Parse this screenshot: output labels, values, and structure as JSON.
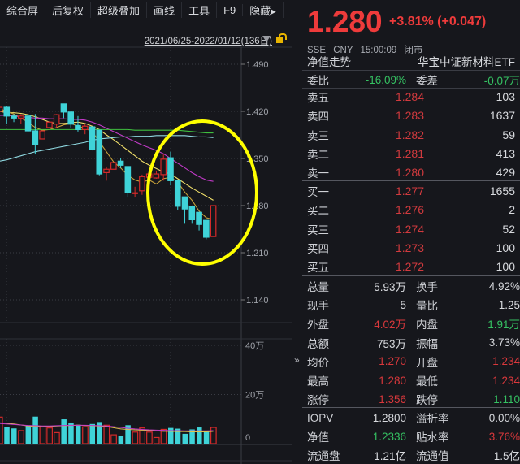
{
  "toolbar": {
    "items": [
      "综合屏",
      "后复权",
      "超级叠加",
      "画线",
      "工具",
      "F9",
      "隐藏▸"
    ]
  },
  "chart": {
    "date_range": "2021/06/25-2022/01/12(136日)",
    "price_ticks": [
      "1.490",
      "1.420",
      "1.350",
      "1.280",
      "1.210",
      "1.140"
    ],
    "volume_ticks": [
      "40万",
      "20万",
      "0"
    ],
    "colors": {
      "up": "#d42a2a",
      "down": "#3fd3d8",
      "annotation": "#ffff00"
    },
    "candles": [
      [
        1.42,
        1.428,
        1.418,
        1.426
      ],
      [
        1.426,
        1.428,
        1.401,
        1.413
      ],
      [
        1.413,
        1.416,
        1.404,
        1.41
      ],
      [
        1.41,
        1.416,
        1.401,
        1.413
      ],
      [
        1.413,
        1.416,
        1.39,
        1.391
      ],
      [
        1.391,
        1.416,
        1.356,
        1.371
      ],
      [
        1.379,
        1.391,
        1.379,
        1.391
      ],
      [
        1.396,
        1.404,
        1.396,
        1.404
      ],
      [
        1.401,
        1.416,
        1.396,
        1.415
      ],
      [
        1.431,
        1.431,
        1.41,
        1.419
      ],
      [
        1.419,
        1.419,
        1.396,
        1.401
      ],
      [
        1.399,
        1.413,
        1.39,
        1.393
      ],
      [
        1.393,
        1.402,
        1.386,
        1.398
      ],
      [
        1.397,
        1.397,
        1.362,
        1.364
      ],
      [
        1.392,
        1.392,
        1.325,
        1.327
      ],
      [
        1.329,
        1.338,
        1.317,
        1.334
      ],
      [
        1.334,
        1.344,
        1.334,
        1.344
      ],
      [
        1.346,
        1.351,
        1.336,
        1.34
      ],
      [
        1.338,
        1.338,
        1.292,
        1.299
      ],
      [
        1.298,
        1.308,
        1.292,
        1.299
      ],
      [
        1.302,
        1.326,
        1.296,
        1.323
      ],
      [
        1.322,
        1.327,
        1.322,
        1.327
      ],
      [
        1.321,
        1.332,
        1.32,
        1.327
      ],
      [
        1.326,
        1.356,
        1.317,
        1.349
      ],
      [
        1.351,
        1.36,
        1.31,
        1.317
      ],
      [
        1.317,
        1.317,
        1.274,
        1.279
      ],
      [
        1.293,
        1.293,
        1.253,
        1.275
      ],
      [
        1.279,
        1.279,
        1.253,
        1.259
      ],
      [
        1.27,
        1.27,
        1.243,
        1.252
      ],
      [
        1.258,
        1.258,
        1.23,
        1.233
      ],
      [
        1.234,
        1.28,
        1.234,
        1.28
      ]
    ],
    "ma_lines": [
      {
        "color": "#f2e06a",
        "values": [
          1.42,
          1.418,
          1.418,
          1.417,
          1.415,
          1.412,
          1.408,
          1.404,
          1.402,
          1.402,
          1.403,
          1.404,
          1.402,
          1.398,
          1.393,
          1.385,
          1.378,
          1.37,
          1.362,
          1.354,
          1.346,
          1.34,
          1.335,
          1.33,
          1.327,
          1.32,
          1.313,
          1.306,
          1.3,
          1.294,
          1.288
        ]
      },
      {
        "color": "#c8a23a",
        "values": [
          1.424,
          1.42,
          1.416,
          1.41,
          1.404,
          1.396,
          1.392,
          1.393,
          1.396,
          1.4,
          1.402,
          1.398,
          1.395,
          1.39,
          1.375,
          1.36,
          1.345,
          1.336,
          1.325,
          1.318,
          1.315,
          1.318,
          1.312,
          1.32,
          1.322,
          1.315,
          1.3,
          1.288,
          1.272,
          1.262,
          1.259
        ]
      },
      {
        "color": "#c23ac8",
        "values": [
          1.414,
          1.414,
          1.413,
          1.412,
          1.411,
          1.41,
          1.41,
          1.409,
          1.409,
          1.409,
          1.408,
          1.408,
          1.407,
          1.404,
          1.4,
          1.395,
          1.39,
          1.385,
          1.38,
          1.375,
          1.37,
          1.366,
          1.362,
          1.357,
          1.35,
          1.343,
          1.336,
          1.329,
          1.323,
          1.318,
          1.316
        ]
      },
      {
        "color": "#3fbf3f",
        "values": [
          1.393,
          1.393,
          1.393,
          1.393,
          1.393,
          1.393,
          1.393,
          1.393,
          1.393,
          1.393,
          1.393,
          1.393,
          1.393,
          1.393,
          1.393,
          1.393,
          1.393,
          1.393,
          1.393,
          1.392,
          1.392,
          1.392,
          1.392,
          1.392,
          1.392,
          1.392,
          1.391,
          1.39,
          1.389,
          1.388,
          1.388
        ]
      },
      {
        "color": "#8fd8e0",
        "values": [
          1.346,
          1.348,
          1.351,
          1.354,
          1.357,
          1.36,
          1.362,
          1.364,
          1.366,
          1.368,
          1.37,
          1.372,
          1.374,
          1.377,
          1.379,
          1.38,
          1.381,
          1.382,
          1.382,
          1.383,
          1.383,
          1.383,
          1.384,
          1.384,
          1.384,
          1.384,
          1.384,
          1.383,
          1.382,
          1.382,
          1.381
        ]
      }
    ],
    "volumes": [
      10.8,
      6.9,
      6.2,
      5.3,
      7.5,
      11.0,
      6.9,
      6.4,
      4.5,
      9.9,
      8.6,
      7.7,
      6.9,
      8.0,
      8.8,
      7.5,
      3.6,
      3.3,
      7.5,
      4.7,
      6.4,
      4.7,
      2.5,
      5.8,
      6.4,
      6.1,
      4.0,
      5.8,
      6.6,
      5.3,
      6.6
    ],
    "vol_ma": [
      {
        "color": "#e0c050",
        "values": [
          8.5,
          8.3,
          8.0,
          7.6,
          7.2,
          7.0,
          6.9,
          7.0,
          7.2,
          7.3,
          7.4,
          7.5,
          7.4,
          7.3,
          7.2,
          7.0,
          6.5,
          6.0,
          5.8,
          5.6,
          5.5,
          5.4,
          5.2,
          5.0,
          5.0,
          4.9,
          4.9,
          4.8,
          4.8,
          4.8,
          5.0
        ]
      },
      {
        "color": "#c23ac8",
        "values": [
          8.2,
          8.0,
          7.8,
          7.6,
          7.4,
          7.3,
          7.2,
          7.2,
          7.3,
          7.4,
          7.5,
          7.5,
          7.5,
          7.4,
          7.3,
          7.2,
          6.9,
          6.6,
          6.3,
          6.0,
          5.8,
          5.6,
          5.5,
          5.4,
          5.3,
          5.3,
          5.2,
          5.2,
          5.2,
          5.2,
          5.3
        ]
      }
    ]
  },
  "expand_label": "»",
  "quote": {
    "price": "1.280",
    "change": "+3.81% (+0.047)",
    "exchange": "SSE",
    "currency": "CNY",
    "time": "15:00:09",
    "status": "闭市",
    "nav_trend": "净值走势",
    "name": "华宝中证新材料ETF"
  },
  "weibi": {
    "label": "委比",
    "value": "-16.09%",
    "label2": "委差",
    "value2": "-0.07万"
  },
  "asks": [
    {
      "label": "卖五",
      "price": "1.284",
      "vol": "103"
    },
    {
      "label": "卖四",
      "price": "1.283",
      "vol": "1637"
    },
    {
      "label": "卖三",
      "price": "1.282",
      "vol": "59"
    },
    {
      "label": "卖二",
      "price": "1.281",
      "vol": "413"
    },
    {
      "label": "卖一",
      "price": "1.280",
      "vol": "429"
    }
  ],
  "bids": [
    {
      "label": "买一",
      "price": "1.277",
      "vol": "1655"
    },
    {
      "label": "买二",
      "price": "1.276",
      "vol": "2"
    },
    {
      "label": "买三",
      "price": "1.274",
      "vol": "52"
    },
    {
      "label": "买四",
      "price": "1.273",
      "vol": "100"
    },
    {
      "label": "买五",
      "price": "1.272",
      "vol": "100"
    }
  ],
  "stats": [
    {
      "l1": "总量",
      "v1": "5.93万",
      "c1": "white",
      "l2": "换手",
      "v2": "4.92%",
      "c2": "white"
    },
    {
      "l1": "现手",
      "v1": "5",
      "c1": "white",
      "l2": "量比",
      "v2": "1.25",
      "c2": "white"
    },
    {
      "l1": "外盘",
      "v1": "4.02万",
      "c1": "red",
      "l2": "内盘",
      "v2": "1.91万",
      "c2": "green"
    },
    {
      "l1": "总额",
      "v1": "753万",
      "c1": "white",
      "l2": "振幅",
      "v2": "3.73%",
      "c2": "white"
    },
    {
      "l1": "均价",
      "v1": "1.270",
      "c1": "red",
      "l2": "开盘",
      "v2": "1.234",
      "c2": "red"
    },
    {
      "l1": "最高",
      "v1": "1.280",
      "c1": "red",
      "l2": "最低",
      "v2": "1.234",
      "c2": "red"
    },
    {
      "l1": "涨停",
      "v1": "1.356",
      "c1": "red",
      "l2": "跌停",
      "v2": "1.110",
      "c2": "green"
    }
  ],
  "etf": [
    {
      "l1": "IOPV",
      "v1": "1.2800",
      "c1": "white",
      "l2": "溢折率",
      "v2": "0.00%",
      "c2": "white"
    },
    {
      "l1": "净值",
      "v1": "1.2336",
      "c1": "green",
      "l2": "贴水率",
      "v2": "3.76%",
      "c2": "red"
    },
    {
      "l1": "流通盘",
      "v1": "1.21亿",
      "c1": "white",
      "l2": "流通值",
      "v2": "1.5亿",
      "c2": "white"
    }
  ]
}
